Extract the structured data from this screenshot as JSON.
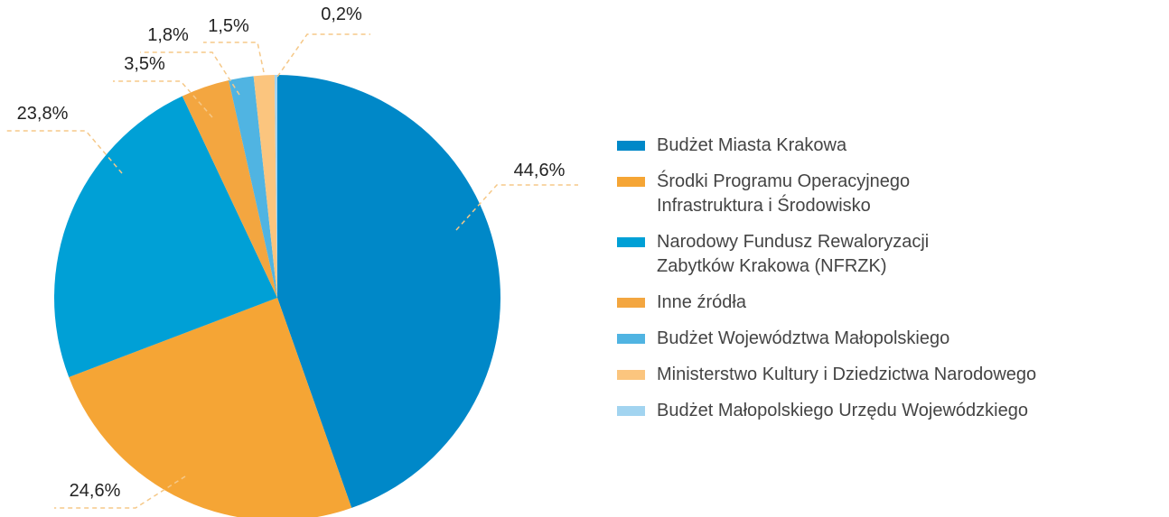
{
  "chart_data": {
    "type": "pie",
    "categories": [
      "Budżet Miasta Krakowa",
      "Środki Programu Operacyjnego Infrastruktura i Środowisko",
      "Narodowy Fundusz Rewaloryzacji Zabytków Krakowa (NFRZK)",
      "Inne źródła",
      "Budżet Województwa Małopolskiego",
      "Ministerstwo Kultury i Dziedzictwa Narodowego",
      "Budżet Małopolskiego Urzędu Wojewódzkiego"
    ],
    "values": [
      44.6,
      24.6,
      23.8,
      3.5,
      1.8,
      1.5,
      0.2
    ],
    "value_labels": [
      "44,6%",
      "24,6%",
      "23,8%",
      "3,5%",
      "1,8%",
      "1,5%",
      "0,2%"
    ],
    "colors": [
      "#0088c8",
      "#f5a535",
      "#00a0d6",
      "#f3a640",
      "#50b4e2",
      "#fbc57e",
      "#a2d4f0"
    ],
    "legend": "right"
  }
}
